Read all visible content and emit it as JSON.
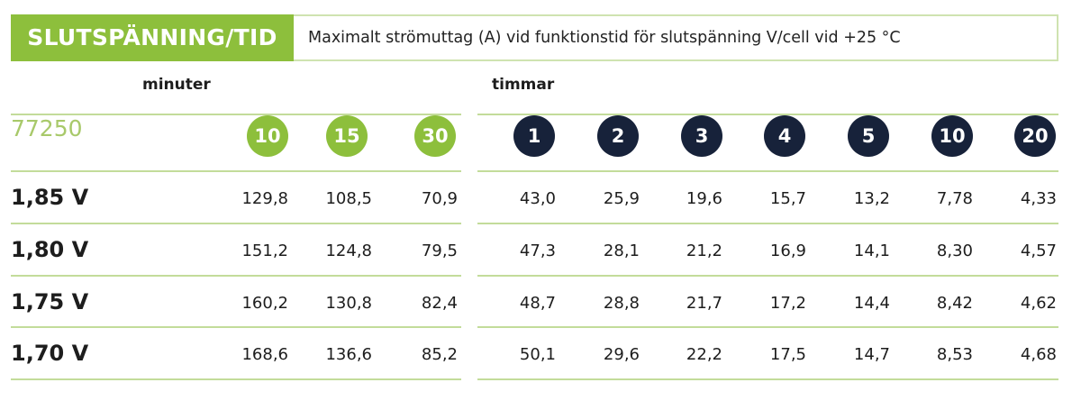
{
  "header": {
    "title": "SLUTSPÄNNING/TID",
    "subtitle": "Maximalt strömuttag (A) vid funktionstid för slutspänning V/cell vid +25 °C"
  },
  "groups": {
    "minutes": "minuter",
    "hours": "timmar"
  },
  "model": "77250",
  "columns": [
    {
      "label": "10",
      "unit": "min",
      "color": "#8dbf3c"
    },
    {
      "label": "15",
      "unit": "min",
      "color": "#8dbf3c"
    },
    {
      "label": "30",
      "unit": "min",
      "color": "#8dbf3c"
    },
    {
      "label": "1",
      "unit": "h",
      "color": "#17223a"
    },
    {
      "label": "2",
      "unit": "h",
      "color": "#17223a"
    },
    {
      "label": "3",
      "unit": "h",
      "color": "#17223a"
    },
    {
      "label": "4",
      "unit": "h",
      "color": "#17223a"
    },
    {
      "label": "5",
      "unit": "h",
      "color": "#17223a"
    },
    {
      "label": "10",
      "unit": "h",
      "color": "#17223a"
    },
    {
      "label": "20",
      "unit": "h",
      "color": "#17223a"
    }
  ],
  "rows": [
    {
      "voltage": "1,85 V",
      "values": [
        "129,8",
        "108,5",
        "70,9",
        "43,0",
        "25,9",
        "19,6",
        "15,7",
        "13,2",
        "7,78",
        "4,33"
      ]
    },
    {
      "voltage": "1,80 V",
      "values": [
        "151,2",
        "124,8",
        "79,5",
        "47,3",
        "28,1",
        "21,2",
        "16,9",
        "14,1",
        "8,30",
        "4,57"
      ]
    },
    {
      "voltage": "1,75 V",
      "values": [
        "160,2",
        "130,8",
        "82,4",
        "48,7",
        "28,8",
        "21,7",
        "17,2",
        "14,4",
        "8,42",
        "4,62"
      ]
    },
    {
      "voltage": "1,70 V",
      "values": [
        "168,6",
        "136,6",
        "85,2",
        "50,1",
        "29,6",
        "22,2",
        "17,5",
        "14,7",
        "8,53",
        "4,68"
      ]
    }
  ]
}
